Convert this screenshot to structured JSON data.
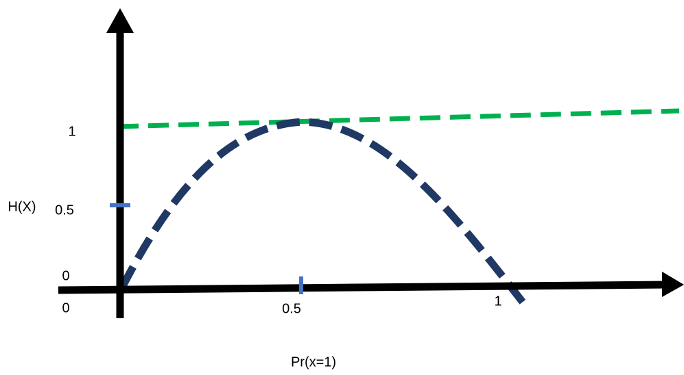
{
  "y_axis": {
    "label": "H(X)",
    "ticks": [
      "0",
      "0.5",
      "1"
    ]
  },
  "x_axis": {
    "label": "Pr(x=1)",
    "ticks": [
      "0",
      "0.5",
      "1"
    ]
  }
}
